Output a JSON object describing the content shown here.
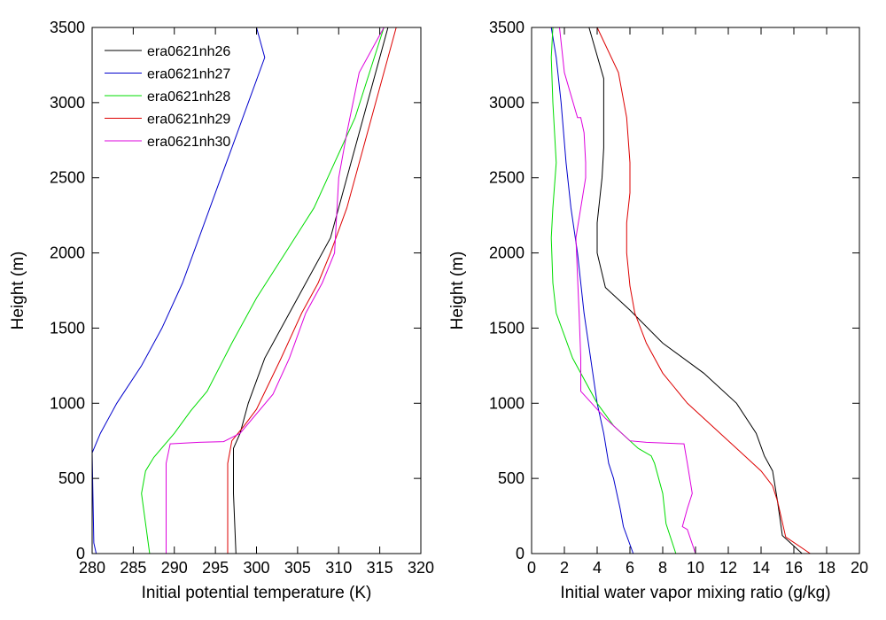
{
  "chart_data": [
    {
      "type": "line",
      "xlabel": "Initial potential temperature (K)",
      "ylabel": "Height (m)",
      "xlim": [
        280,
        320
      ],
      "ylim": [
        0,
        3500
      ],
      "xticks": [
        280,
        285,
        290,
        295,
        300,
        305,
        310,
        315,
        320
      ],
      "yticks": [
        0,
        500,
        1000,
        1500,
        2000,
        2500,
        3000,
        3500
      ],
      "grid": false,
      "legend": "top-left",
      "series": [
        {
          "name": "era0621nh26",
          "color": "#000000",
          "points": [
            [
              297.5,
              0
            ],
            [
              297.2,
              400
            ],
            [
              297.2,
              700
            ],
            [
              298,
              800
            ],
            [
              299,
              1000
            ],
            [
              301,
              1300
            ],
            [
              305,
              1700
            ],
            [
              309,
              2100
            ],
            [
              311,
              2500
            ],
            [
              313,
              2900
            ],
            [
              316,
              3500
            ]
          ]
        },
        {
          "name": "era0621nh27",
          "color": "#0000cc",
          "points": [
            [
              280.5,
              0
            ],
            [
              280.2,
              70
            ],
            [
              280,
              670
            ],
            [
              281,
              800
            ],
            [
              283,
              1000
            ],
            [
              286,
              1250
            ],
            [
              288.5,
              1500
            ],
            [
              291,
              1800
            ],
            [
              293,
              2100
            ],
            [
              295,
              2400
            ],
            [
              297,
              2700
            ],
            [
              299,
              3000
            ],
            [
              301,
              3300
            ],
            [
              300,
              3500
            ]
          ]
        },
        {
          "name": "era0621nh28",
          "color": "#00dd00",
          "points": [
            [
              287,
              0
            ],
            [
              286.5,
              200
            ],
            [
              286,
              400
            ],
            [
              286.5,
              550
            ],
            [
              287.5,
              640
            ],
            [
              290,
              800
            ],
            [
              292,
              950
            ],
            [
              294,
              1080
            ],
            [
              297,
              1400
            ],
            [
              300,
              1700
            ],
            [
              303.5,
              2000
            ],
            [
              307,
              2300
            ],
            [
              309.5,
              2600
            ],
            [
              312,
              2900
            ],
            [
              315.5,
              3500
            ]
          ]
        },
        {
          "name": "era0621nh29",
          "color": "#dd0000",
          "points": [
            [
              296.5,
              0
            ],
            [
              296.5,
              300
            ],
            [
              296.5,
              600
            ],
            [
              297,
              750
            ],
            [
              298.5,
              850
            ],
            [
              300,
              960
            ],
            [
              303,
              1300
            ],
            [
              305.5,
              1600
            ],
            [
              307.5,
              1800
            ],
            [
              309,
              2000
            ],
            [
              311,
              2300
            ],
            [
              313,
              2700
            ],
            [
              314.5,
              3000
            ],
            [
              317,
              3500
            ]
          ]
        },
        {
          "name": "era0621nh30",
          "color": "#dd00dd",
          "points": [
            [
              289,
              0
            ],
            [
              289,
              300
            ],
            [
              289,
              600
            ],
            [
              289.5,
              730
            ],
            [
              293,
              740
            ],
            [
              296,
              745
            ],
            [
              298,
              800
            ],
            [
              302,
              1060
            ],
            [
              304,
              1300
            ],
            [
              306,
              1600
            ],
            [
              308,
              1800
            ],
            [
              309.5,
              2000
            ],
            [
              310,
              2500
            ],
            [
              311,
              2800
            ],
            [
              312.5,
              3200
            ],
            [
              315.5,
              3500
            ]
          ]
        }
      ]
    },
    {
      "type": "line",
      "xlabel": "Initial water vapor mixing ratio (g/kg)",
      "ylabel": "Height (m)",
      "xlim": [
        0,
        20
      ],
      "ylim": [
        0,
        3500
      ],
      "xticks": [
        0,
        2,
        4,
        6,
        8,
        10,
        12,
        14,
        16,
        18,
        20
      ],
      "yticks": [
        0,
        500,
        1000,
        1500,
        2000,
        2500,
        3000,
        3500
      ],
      "grid": false,
      "series": [
        {
          "name": "era0621nh26",
          "color": "#000000",
          "points": [
            [
              16.5,
              0
            ],
            [
              15.3,
              120
            ],
            [
              15,
              350
            ],
            [
              14.7,
              550
            ],
            [
              14.2,
              650
            ],
            [
              13.7,
              800
            ],
            [
              12.5,
              1000
            ],
            [
              10.5,
              1200
            ],
            [
              8,
              1400
            ],
            [
              6,
              1620
            ],
            [
              4.5,
              1770
            ],
            [
              4,
              2000
            ],
            [
              4,
              2200
            ],
            [
              4.3,
              2500
            ],
            [
              4.4,
              2700
            ],
            [
              4.4,
              3000
            ],
            [
              4.4,
              3160
            ],
            [
              3.5,
              3500
            ]
          ]
        },
        {
          "name": "era0621nh27",
          "color": "#0000cc",
          "points": [
            [
              6.2,
              0
            ],
            [
              5.6,
              180
            ],
            [
              5.4,
              300
            ],
            [
              5,
              500
            ],
            [
              4.7,
              600
            ],
            [
              4.4,
              800
            ],
            [
              4,
              1000
            ],
            [
              3.6,
              1300
            ],
            [
              3.2,
              1600
            ],
            [
              2.8,
              2000
            ],
            [
              2.4,
              2300
            ],
            [
              2.1,
              2600
            ],
            [
              1.8,
              3000
            ],
            [
              1.5,
              3300
            ],
            [
              1.2,
              3500
            ]
          ]
        },
        {
          "name": "era0621nh28",
          "color": "#00dd00",
          "points": [
            [
              8.8,
              0
            ],
            [
              8.2,
              200
            ],
            [
              8,
              400
            ],
            [
              7.5,
              600
            ],
            [
              7.3,
              650
            ],
            [
              6.5,
              700
            ],
            [
              5,
              850
            ],
            [
              4,
              1000
            ],
            [
              2.5,
              1300
            ],
            [
              1.5,
              1600
            ],
            [
              1.3,
              1800
            ],
            [
              1.2,
              2100
            ],
            [
              1.3,
              2300
            ],
            [
              1.5,
              2600
            ],
            [
              1.3,
              3000
            ],
            [
              1.2,
              3300
            ],
            [
              1.3,
              3500
            ]
          ]
        },
        {
          "name": "era0621nh29",
          "color": "#dd0000",
          "points": [
            [
              17,
              0
            ],
            [
              15.5,
              110
            ],
            [
              15,
              350
            ],
            [
              14.7,
              450
            ],
            [
              14,
              550
            ],
            [
              13.5,
              600
            ],
            [
              11.5,
              800
            ],
            [
              9.5,
              1000
            ],
            [
              8,
              1200
            ],
            [
              7,
              1400
            ],
            [
              6.3,
              1600
            ],
            [
              6,
              1780
            ],
            [
              5.8,
              2000
            ],
            [
              5.8,
              2200
            ],
            [
              6,
              2400
            ],
            [
              6,
              2600
            ],
            [
              5.8,
              2900
            ],
            [
              5.3,
              3200
            ],
            [
              4,
              3500
            ]
          ]
        },
        {
          "name": "era0621nh30",
          "color": "#dd00dd",
          "points": [
            [
              10,
              0
            ],
            [
              9.5,
              160
            ],
            [
              9.2,
              180
            ],
            [
              9.5,
              300
            ],
            [
              9.8,
              400
            ],
            [
              9.5,
              600
            ],
            [
              9.3,
              730
            ],
            [
              7,
              740
            ],
            [
              6,
              750
            ],
            [
              4.5,
              900
            ],
            [
              3,
              1080
            ],
            [
              3,
              1300
            ],
            [
              2.9,
              1600
            ],
            [
              2.7,
              2100
            ],
            [
              3,
              2300
            ],
            [
              3.3,
              2500
            ],
            [
              3.3,
              2600
            ],
            [
              3.2,
              2800
            ],
            [
              3,
              2900
            ],
            [
              2.8,
              2900
            ],
            [
              2,
              3200
            ],
            [
              1.7,
              3500
            ]
          ]
        }
      ]
    }
  ]
}
